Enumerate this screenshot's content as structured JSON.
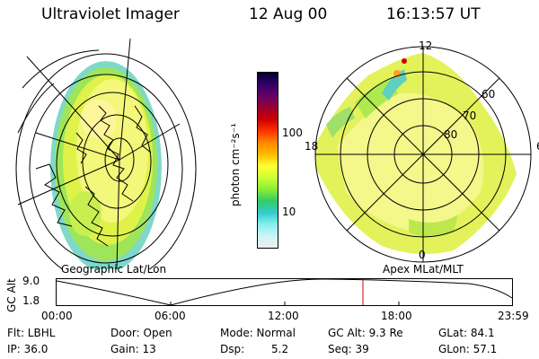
{
  "header": {
    "instrument": "Ultraviolet Imager",
    "date": "12 Aug 00",
    "time": "16:13:57 UT"
  },
  "left_panel": {
    "caption": "Geographic Lat/Lon"
  },
  "right_panel": {
    "caption": "Apex MLat/MLT",
    "mlt_labels": [
      "12",
      "18",
      "6",
      "0"
    ],
    "lat_labels": [
      "60",
      "70",
      "80"
    ]
  },
  "colorbar": {
    "unit_label": "photon cm⁻²s⁻¹",
    "tick_100": "100",
    "tick_10": "10",
    "colors": [
      "#000033",
      "#330066",
      "#660066",
      "#990033",
      "#cc0000",
      "#ff3300",
      "#ff8800",
      "#ffbb00",
      "#ffff33",
      "#ccff33",
      "#88ee33",
      "#33cc66",
      "#33cccc",
      "#88eeee",
      "#ccf5f5",
      "#eeeeee"
    ]
  },
  "altitude_plot": {
    "ylabel": "GC Alt",
    "ymax_label": "9.0",
    "ymin_label": "1.8",
    "time_ticks": [
      "00:00",
      "06:00",
      "12:00",
      "18:00",
      "23:59"
    ],
    "marker_color": "#cc0000"
  },
  "info": {
    "filter": "Flt: LBHL",
    "ip": "IP: 36.0",
    "door": "Door: Open",
    "gain": "Gain: 13",
    "mode": "Mode: Normal",
    "dsp_label": "Dsp:",
    "dsp_value": "5.2",
    "gc_alt": "GC Alt: 9.3 Re",
    "seq": "Seq: 39",
    "glat": "GLat: 84.1",
    "glon": "GLon: 57.1"
  }
}
